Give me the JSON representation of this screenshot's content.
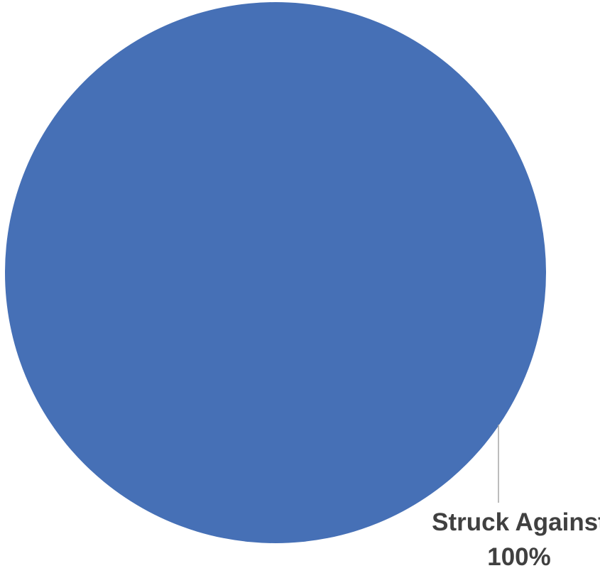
{
  "chart_data": {
    "type": "pie",
    "slices": [
      {
        "name": "Struck Against",
        "value": 100,
        "label": "Struck Against",
        "percent_label": "100%",
        "color": "#4670b6"
      }
    ],
    "leader_line_color": "#a6a6a6",
    "title": "",
    "legend": "none"
  }
}
